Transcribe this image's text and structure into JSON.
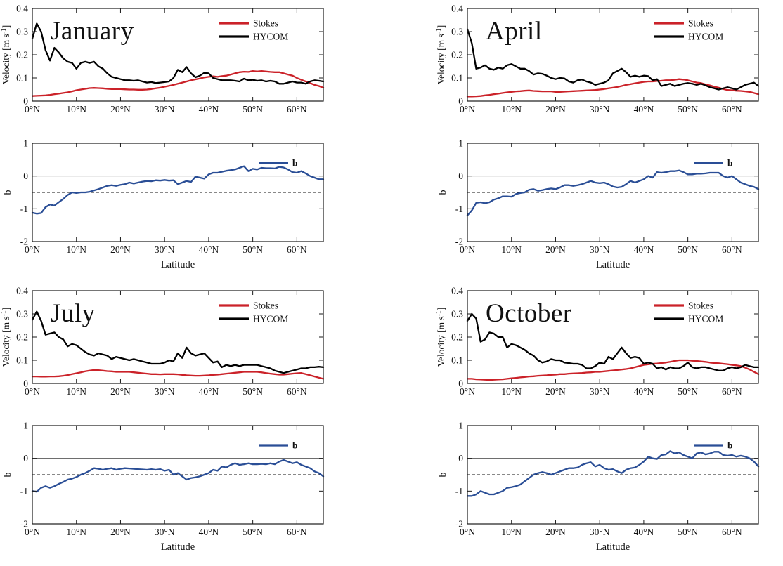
{
  "figure": {
    "background": "#ffffff"
  },
  "colors": {
    "stokes": "#cb2229",
    "hycom": "#000000",
    "b": "#2a4e96",
    "axis": "#1a1a1a",
    "zero_line": "#5a5a5a",
    "dashed_line": "#111111",
    "text": "#111111"
  },
  "x_start_deg": 0,
  "x_step_deg": 1,
  "latitude_axis": {
    "xlim": [
      0,
      66
    ],
    "values": [
      0,
      10,
      20,
      30,
      40,
      50,
      60
    ],
    "labels": [
      "0°N",
      "10°N",
      "20°N",
      "30°N",
      "40°N",
      "50°N",
      "60°N"
    ],
    "xlabel": "Latitude"
  },
  "velocity_axis": {
    "ylim": [
      0,
      0.4
    ],
    "values": [
      0,
      0.1,
      0.2,
      0.3,
      0.4
    ],
    "labels": [
      "0",
      "0.1",
      "0.2",
      "0.3",
      "0.4"
    ],
    "ylabel_pre": "Velocity [m s",
    "ylabel_sup": "-1",
    "ylabel_post": "]"
  },
  "b_axis": {
    "ylim": [
      -2,
      1
    ],
    "values": [
      -2,
      -1,
      0,
      1
    ],
    "labels": [
      "-2",
      "-1",
      "0",
      "1"
    ],
    "ylabel": "b",
    "ref_lines": [
      {
        "y": 0,
        "style": "solid"
      },
      {
        "y": -0.5,
        "style": "dashed"
      }
    ]
  },
  "chart_data": [
    {
      "id": "january-velocity",
      "month": "January",
      "kind": "velocity",
      "type": "line",
      "title": "January",
      "legend": [
        "Stokes",
        "HYCOM"
      ],
      "series": [
        {
          "name": "Stokes",
          "color": "stokes",
          "values": [
            0.022,
            0.023,
            0.024,
            0.025,
            0.027,
            0.03,
            0.032,
            0.035,
            0.038,
            0.042,
            0.047,
            0.05,
            0.053,
            0.056,
            0.057,
            0.056,
            0.055,
            0.053,
            0.052,
            0.052,
            0.052,
            0.051,
            0.05,
            0.05,
            0.049,
            0.049,
            0.05,
            0.052,
            0.055,
            0.058,
            0.062,
            0.066,
            0.07,
            0.075,
            0.08,
            0.085,
            0.09,
            0.094,
            0.098,
            0.102,
            0.105,
            0.107,
            0.105,
            0.108,
            0.11,
            0.115,
            0.12,
            0.125,
            0.127,
            0.126,
            0.13,
            0.128,
            0.13,
            0.128,
            0.126,
            0.125,
            0.125,
            0.12,
            0.115,
            0.11,
            0.1,
            0.092,
            0.085,
            0.078,
            0.07,
            0.065,
            0.058
          ]
        },
        {
          "name": "HYCOM",
          "color": "hycom",
          "values": [
            0.27,
            0.335,
            0.3,
            0.22,
            0.175,
            0.23,
            0.21,
            0.185,
            0.17,
            0.165,
            0.14,
            0.165,
            0.17,
            0.165,
            0.17,
            0.15,
            0.14,
            0.12,
            0.105,
            0.1,
            0.095,
            0.09,
            0.09,
            0.088,
            0.09,
            0.085,
            0.08,
            0.082,
            0.078,
            0.08,
            0.082,
            0.085,
            0.1,
            0.135,
            0.125,
            0.147,
            0.12,
            0.103,
            0.11,
            0.122,
            0.12,
            0.1,
            0.095,
            0.09,
            0.09,
            0.09,
            0.088,
            0.085,
            0.097,
            0.09,
            0.092,
            0.088,
            0.09,
            0.085,
            0.088,
            0.085,
            0.075,
            0.075,
            0.08,
            0.085,
            0.08,
            0.08,
            0.075,
            0.085,
            0.09,
            0.088,
            0.085
          ]
        }
      ]
    },
    {
      "id": "january-b",
      "month": "January",
      "kind": "b",
      "type": "line",
      "title": "",
      "legend": [
        "b"
      ],
      "series": [
        {
          "name": "b",
          "color": "b",
          "values": [
            -1.12,
            -1.15,
            -1.13,
            -0.95,
            -0.87,
            -0.9,
            -0.8,
            -0.7,
            -0.58,
            -0.5,
            -0.52,
            -0.5,
            -0.5,
            -0.48,
            -0.44,
            -0.4,
            -0.35,
            -0.3,
            -0.28,
            -0.3,
            -0.27,
            -0.25,
            -0.2,
            -0.23,
            -0.2,
            -0.17,
            -0.15,
            -0.16,
            -0.13,
            -0.14,
            -0.12,
            -0.14,
            -0.13,
            -0.25,
            -0.2,
            -0.15,
            -0.18,
            -0.02,
            -0.05,
            -0.08,
            0.05,
            0.1,
            0.1,
            0.13,
            0.16,
            0.18,
            0.2,
            0.25,
            0.3,
            0.15,
            0.22,
            0.2,
            0.25,
            0.24,
            0.24,
            0.23,
            0.28,
            0.26,
            0.2,
            0.12,
            0.1,
            0.15,
            0.08,
            0.0,
            -0.05,
            -0.1,
            -0.1
          ]
        }
      ]
    },
    {
      "id": "april-velocity",
      "month": "April",
      "kind": "velocity",
      "type": "line",
      "title": "April",
      "legend": [
        "Stokes",
        "HYCOM"
      ],
      "series": [
        {
          "name": "Stokes",
          "color": "stokes",
          "values": [
            0.02,
            0.02,
            0.021,
            0.022,
            0.025,
            0.027,
            0.03,
            0.032,
            0.035,
            0.038,
            0.04,
            0.042,
            0.043,
            0.045,
            0.046,
            0.044,
            0.043,
            0.042,
            0.042,
            0.042,
            0.04,
            0.04,
            0.041,
            0.042,
            0.043,
            0.044,
            0.045,
            0.046,
            0.047,
            0.048,
            0.05,
            0.052,
            0.055,
            0.058,
            0.061,
            0.065,
            0.07,
            0.073,
            0.077,
            0.08,
            0.083,
            0.085,
            0.085,
            0.087,
            0.088,
            0.09,
            0.09,
            0.092,
            0.095,
            0.093,
            0.09,
            0.085,
            0.08,
            0.078,
            0.072,
            0.068,
            0.062,
            0.058,
            0.052,
            0.048,
            0.047,
            0.045,
            0.044,
            0.042,
            0.04,
            0.035,
            0.03
          ]
        },
        {
          "name": "HYCOM",
          "color": "hycom",
          "values": [
            0.31,
            0.25,
            0.14,
            0.145,
            0.155,
            0.14,
            0.135,
            0.145,
            0.14,
            0.155,
            0.16,
            0.15,
            0.14,
            0.14,
            0.13,
            0.115,
            0.12,
            0.118,
            0.11,
            0.1,
            0.095,
            0.1,
            0.098,
            0.085,
            0.08,
            0.09,
            0.093,
            0.085,
            0.08,
            0.07,
            0.075,
            0.08,
            0.09,
            0.12,
            0.13,
            0.14,
            0.125,
            0.105,
            0.11,
            0.105,
            0.11,
            0.108,
            0.09,
            0.095,
            0.065,
            0.07,
            0.075,
            0.065,
            0.07,
            0.075,
            0.078,
            0.075,
            0.07,
            0.075,
            0.068,
            0.06,
            0.055,
            0.05,
            0.055,
            0.06,
            0.055,
            0.05,
            0.06,
            0.07,
            0.075,
            0.08,
            0.065
          ]
        }
      ]
    },
    {
      "id": "april-b",
      "month": "April",
      "kind": "b",
      "type": "line",
      "title": "",
      "legend": [
        "b"
      ],
      "series": [
        {
          "name": "b",
          "color": "b",
          "values": [
            -1.2,
            -1.05,
            -0.82,
            -0.8,
            -0.83,
            -0.8,
            -0.72,
            -0.68,
            -0.62,
            -0.62,
            -0.63,
            -0.55,
            -0.52,
            -0.5,
            -0.42,
            -0.4,
            -0.45,
            -0.43,
            -0.4,
            -0.38,
            -0.4,
            -0.35,
            -0.28,
            -0.28,
            -0.3,
            -0.28,
            -0.25,
            -0.2,
            -0.15,
            -0.2,
            -0.22,
            -0.2,
            -0.25,
            -0.32,
            -0.35,
            -0.33,
            -0.25,
            -0.15,
            -0.2,
            -0.15,
            -0.1,
            0.0,
            -0.05,
            0.12,
            0.1,
            0.12,
            0.15,
            0.15,
            0.17,
            0.12,
            0.05,
            0.05,
            0.07,
            0.07,
            0.08,
            0.1,
            0.1,
            0.1,
            0.0,
            -0.05,
            0.0,
            -0.1,
            -0.2,
            -0.25,
            -0.3,
            -0.33,
            -0.4
          ]
        }
      ]
    },
    {
      "id": "july-velocity",
      "month": "July",
      "kind": "velocity",
      "type": "line",
      "title": "July",
      "legend": [
        "Stokes",
        "HYCOM"
      ],
      "series": [
        {
          "name": "Stokes",
          "color": "stokes",
          "values": [
            0.03,
            0.03,
            0.029,
            0.029,
            0.03,
            0.03,
            0.031,
            0.033,
            0.036,
            0.04,
            0.044,
            0.048,
            0.052,
            0.055,
            0.058,
            0.057,
            0.055,
            0.053,
            0.052,
            0.05,
            0.05,
            0.05,
            0.05,
            0.048,
            0.046,
            0.044,
            0.042,
            0.04,
            0.04,
            0.039,
            0.04,
            0.04,
            0.04,
            0.039,
            0.037,
            0.035,
            0.034,
            0.033,
            0.033,
            0.034,
            0.035,
            0.037,
            0.038,
            0.04,
            0.042,
            0.044,
            0.046,
            0.048,
            0.05,
            0.05,
            0.05,
            0.05,
            0.048,
            0.045,
            0.042,
            0.04,
            0.038,
            0.038,
            0.04,
            0.042,
            0.044,
            0.045,
            0.04,
            0.035,
            0.03,
            0.025,
            0.02
          ]
        },
        {
          "name": "HYCOM",
          "color": "hycom",
          "values": [
            0.275,
            0.31,
            0.27,
            0.21,
            0.215,
            0.22,
            0.2,
            0.19,
            0.16,
            0.17,
            0.165,
            0.15,
            0.135,
            0.125,
            0.12,
            0.13,
            0.125,
            0.12,
            0.105,
            0.115,
            0.11,
            0.105,
            0.1,
            0.105,
            0.1,
            0.095,
            0.09,
            0.085,
            0.085,
            0.085,
            0.09,
            0.1,
            0.095,
            0.13,
            0.11,
            0.155,
            0.13,
            0.12,
            0.125,
            0.13,
            0.11,
            0.09,
            0.095,
            0.07,
            0.08,
            0.075,
            0.08,
            0.075,
            0.08,
            0.08,
            0.08,
            0.08,
            0.075,
            0.07,
            0.065,
            0.055,
            0.05,
            0.045,
            0.05,
            0.055,
            0.06,
            0.065,
            0.065,
            0.07,
            0.07,
            0.072,
            0.07
          ]
        }
      ]
    },
    {
      "id": "july-b",
      "month": "July",
      "kind": "b",
      "type": "line",
      "title": "",
      "legend": [
        "b"
      ],
      "series": [
        {
          "name": "b",
          "color": "b",
          "values": [
            -1.0,
            -1.02,
            -0.9,
            -0.85,
            -0.9,
            -0.85,
            -0.78,
            -0.72,
            -0.65,
            -0.62,
            -0.57,
            -0.5,
            -0.45,
            -0.38,
            -0.3,
            -0.32,
            -0.35,
            -0.32,
            -0.3,
            -0.35,
            -0.32,
            -0.3,
            -0.31,
            -0.32,
            -0.33,
            -0.34,
            -0.35,
            -0.33,
            -0.35,
            -0.33,
            -0.38,
            -0.35,
            -0.5,
            -0.45,
            -0.55,
            -0.65,
            -0.6,
            -0.58,
            -0.55,
            -0.5,
            -0.45,
            -0.35,
            -0.38,
            -0.25,
            -0.28,
            -0.2,
            -0.15,
            -0.2,
            -0.18,
            -0.15,
            -0.18,
            -0.18,
            -0.17,
            -0.18,
            -0.15,
            -0.18,
            -0.1,
            -0.05,
            -0.1,
            -0.15,
            -0.12,
            -0.2,
            -0.25,
            -0.3,
            -0.4,
            -0.45,
            -0.55
          ]
        }
      ]
    },
    {
      "id": "october-velocity",
      "month": "October",
      "kind": "velocity",
      "type": "line",
      "title": "October",
      "legend": [
        "Stokes",
        "HYCOM"
      ],
      "series": [
        {
          "name": "Stokes",
          "color": "stokes",
          "values": [
            0.02,
            0.02,
            0.018,
            0.017,
            0.016,
            0.015,
            0.016,
            0.017,
            0.018,
            0.02,
            0.022,
            0.024,
            0.026,
            0.028,
            0.03,
            0.031,
            0.033,
            0.034,
            0.035,
            0.037,
            0.038,
            0.04,
            0.04,
            0.042,
            0.043,
            0.044,
            0.045,
            0.047,
            0.048,
            0.05,
            0.05,
            0.052,
            0.054,
            0.056,
            0.058,
            0.06,
            0.062,
            0.065,
            0.07,
            0.075,
            0.08,
            0.082,
            0.085,
            0.086,
            0.088,
            0.09,
            0.093,
            0.097,
            0.1,
            0.1,
            0.1,
            0.098,
            0.097,
            0.095,
            0.093,
            0.09,
            0.088,
            0.087,
            0.085,
            0.083,
            0.08,
            0.078,
            0.075,
            0.068,
            0.06,
            0.05,
            0.04
          ]
        },
        {
          "name": "HYCOM",
          "color": "hycom",
          "values": [
            0.27,
            0.3,
            0.28,
            0.18,
            0.19,
            0.22,
            0.215,
            0.2,
            0.2,
            0.155,
            0.17,
            0.165,
            0.155,
            0.145,
            0.13,
            0.12,
            0.1,
            0.09,
            0.095,
            0.105,
            0.1,
            0.1,
            0.09,
            0.088,
            0.085,
            0.085,
            0.08,
            0.065,
            0.065,
            0.075,
            0.09,
            0.085,
            0.115,
            0.105,
            0.13,
            0.155,
            0.13,
            0.11,
            0.115,
            0.11,
            0.085,
            0.09,
            0.085,
            0.065,
            0.07,
            0.06,
            0.07,
            0.065,
            0.065,
            0.075,
            0.09,
            0.07,
            0.065,
            0.07,
            0.07,
            0.065,
            0.06,
            0.055,
            0.055,
            0.065,
            0.07,
            0.065,
            0.07,
            0.08,
            0.075,
            0.07,
            0.07
          ]
        }
      ]
    },
    {
      "id": "october-b",
      "month": "October",
      "kind": "b",
      "type": "line",
      "title": "",
      "legend": [
        "b"
      ],
      "series": [
        {
          "name": "b",
          "color": "b",
          "values": [
            -1.15,
            -1.15,
            -1.1,
            -1.0,
            -1.05,
            -1.1,
            -1.1,
            -1.05,
            -1.0,
            -0.9,
            -0.88,
            -0.85,
            -0.8,
            -0.7,
            -0.6,
            -0.5,
            -0.45,
            -0.42,
            -0.45,
            -0.5,
            -0.45,
            -0.4,
            -0.35,
            -0.3,
            -0.3,
            -0.28,
            -0.2,
            -0.15,
            -0.12,
            -0.25,
            -0.2,
            -0.3,
            -0.35,
            -0.33,
            -0.4,
            -0.45,
            -0.35,
            -0.3,
            -0.28,
            -0.2,
            -0.1,
            0.05,
            0.0,
            -0.02,
            0.1,
            0.12,
            0.22,
            0.15,
            0.18,
            0.1,
            0.05,
            0.0,
            0.15,
            0.18,
            0.12,
            0.15,
            0.2,
            0.2,
            0.1,
            0.08,
            0.1,
            0.05,
            0.08,
            0.05,
            0.0,
            -0.1,
            -0.25
          ]
        }
      ]
    }
  ]
}
